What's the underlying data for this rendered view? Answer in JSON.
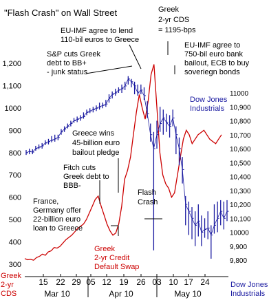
{
  "chart_data": {
    "type": "line",
    "title": "\"Flash Crash\" on Wall Street",
    "left_axis": {
      "label_lines": [
        "Greek",
        "2-yr",
        "CDS"
      ],
      "ticks": [
        "1,200",
        "1,100",
        "1000",
        "900",
        "800",
        "700",
        "600",
        "500",
        "400",
        "300"
      ],
      "tick_values": [
        1200,
        1100,
        1000,
        900,
        800,
        700,
        600,
        500,
        400,
        300
      ],
      "ylim": [
        280,
        1260
      ]
    },
    "right_axis": {
      "label_lines": [
        "Dow Jones",
        "Industrials"
      ],
      "ticks": [
        "11000",
        "10,900",
        "10,800",
        "10,700",
        "10,600",
        "10,500",
        "10,400",
        "10,300",
        "10,200",
        "10,100",
        "10000",
        "9,900",
        "9,800"
      ],
      "tick_values": [
        11000,
        10900,
        10800,
        10700,
        10600,
        10500,
        10400,
        10300,
        10200,
        10100,
        10000,
        9900,
        9800
      ],
      "ylim": [
        9740,
        11120
      ]
    },
    "x_ticks": [
      "15",
      "22",
      "29",
      "05",
      "12",
      "19",
      "26",
      "03",
      "10",
      "17",
      "24"
    ],
    "months": [
      "Mar 10",
      "Apr 10",
      "May 10"
    ],
    "grid": false,
    "series": [
      {
        "name": "Greek 2-yr Credit Default Swap",
        "axis": "left",
        "color": "#cc0000",
        "values": [
          325,
          320,
          322,
          318,
          330,
          335,
          345,
          340,
          355,
          360,
          375,
          372,
          380,
          395,
          410,
          420,
          430,
          445,
          460,
          470,
          480,
          500,
          530,
          560,
          590,
          605,
          560,
          520,
          480,
          450,
          430,
          440,
          480,
          560,
          680,
          720,
          780,
          880,
          980,
          1060,
          1000,
          950,
          1030,
          1150,
          1195,
          1000,
          800,
          700,
          660,
          640,
          600,
          620,
          700,
          780,
          860,
          900,
          880,
          840,
          860,
          880,
          890,
          900,
          880,
          860,
          850,
          840,
          860,
          880
        ]
      },
      {
        "name": "Dow Jones Industrials",
        "axis": "right",
        "color": "#1a1aa0",
        "ohlc": [
          [
            10570,
            10590,
            10555
          ],
          [
            10580,
            10600,
            10560
          ],
          [
            10575,
            10595,
            10560
          ],
          [
            10600,
            10620,
            10585
          ],
          [
            10610,
            10630,
            10595
          ],
          [
            10620,
            10640,
            10600
          ],
          [
            10640,
            10660,
            10625
          ],
          [
            10650,
            10670,
            10630
          ],
          [
            10660,
            10690,
            10645
          ],
          [
            10670,
            10700,
            10650
          ],
          [
            10680,
            10700,
            10660
          ],
          [
            10720,
            10740,
            10700
          ],
          [
            10740,
            10760,
            10720
          ],
          [
            10760,
            10780,
            10745
          ],
          [
            10780,
            10800,
            10760
          ],
          [
            10800,
            10820,
            10785
          ],
          [
            10810,
            10830,
            10790
          ],
          [
            10820,
            10840,
            10800
          ],
          [
            10830,
            10860,
            10815
          ],
          [
            10860,
            10880,
            10840
          ],
          [
            10870,
            10890,
            10855
          ],
          [
            10880,
            10900,
            10860
          ],
          [
            10890,
            10910,
            10870
          ],
          [
            10900,
            10930,
            10880
          ],
          [
            10910,
            10930,
            10890
          ],
          [
            10920,
            10950,
            10900
          ],
          [
            10960,
            10990,
            10930
          ],
          [
            10990,
            11010,
            10960
          ],
          [
            11000,
            11030,
            10980
          ],
          [
            11020,
            11040,
            11000
          ],
          [
            11030,
            11060,
            11000
          ],
          [
            11050,
            11080,
            11020
          ],
          [
            11100,
            11120,
            11060
          ],
          [
            11080,
            11100,
            11040
          ],
          [
            11050,
            11080,
            10990
          ],
          [
            11000,
            11060,
            10980
          ],
          [
            11020,
            11060,
            10990
          ],
          [
            10980,
            11040,
            10950
          ],
          [
            10850,
            10940,
            10820
          ],
          [
            10700,
            10780,
            10650
          ],
          [
            10600,
            10720,
            9870
          ],
          [
            10700,
            10800,
            10600
          ],
          [
            10780,
            10900,
            10720
          ],
          [
            10820,
            10880,
            10700
          ],
          [
            10790,
            10850,
            10720
          ],
          [
            10760,
            10840,
            10680
          ],
          [
            10820,
            10880,
            10760
          ],
          [
            10700,
            10760,
            10560
          ],
          [
            10600,
            10680,
            10480
          ],
          [
            10450,
            10540,
            10350
          ],
          [
            10200,
            10260,
            10050
          ],
          [
            10150,
            10220,
            9980
          ],
          [
            10100,
            10180,
            9950
          ],
          [
            10050,
            10150,
            9900
          ],
          [
            10080,
            10200,
            9970
          ],
          [
            10000,
            10120,
            9900
          ],
          [
            10020,
            10100,
            9960
          ],
          [
            10030,
            10150,
            9950
          ],
          [
            9980,
            10050,
            9810
          ],
          [
            10050,
            10200,
            9990
          ],
          [
            10100,
            10220,
            10000
          ],
          [
            10150,
            10230,
            10050
          ],
          [
            10100,
            10220,
            10020
          ],
          [
            10150,
            10230,
            10080
          ]
        ]
      }
    ],
    "annotations": [
      {
        "lines": [
          "EU-IMF agree to lend",
          "110-bil euros to Greece"
        ]
      },
      {
        "lines": [
          "S&P cuts Greek",
          "debt to BB+",
          "- junk status"
        ]
      },
      {
        "lines": [
          "Greek",
          "2-yr CDS",
          "= 1195-bps"
        ]
      },
      {
        "lines": [
          "EU-IMF agree to",
          "750-bil euro bank",
          "bailout, ECB to buy",
          "soveriegn bonds"
        ]
      },
      {
        "lines": [
          "Greece wins",
          "45-billion euro",
          "bailout pledge"
        ]
      },
      {
        "lines": [
          "Fitch cuts",
          "Greek debt to",
          "BBB-"
        ]
      },
      {
        "lines": [
          "France,",
          "Germany offer",
          "22-billion euro",
          "loan to Greece"
        ]
      },
      {
        "lines": [
          "Flash",
          "Crash"
        ]
      }
    ],
    "series_labels": {
      "cds": [
        "Greek",
        "2-yr Credit",
        "Default Swap"
      ],
      "dow": [
        "Dow Jones",
        "Industrials"
      ]
    }
  }
}
